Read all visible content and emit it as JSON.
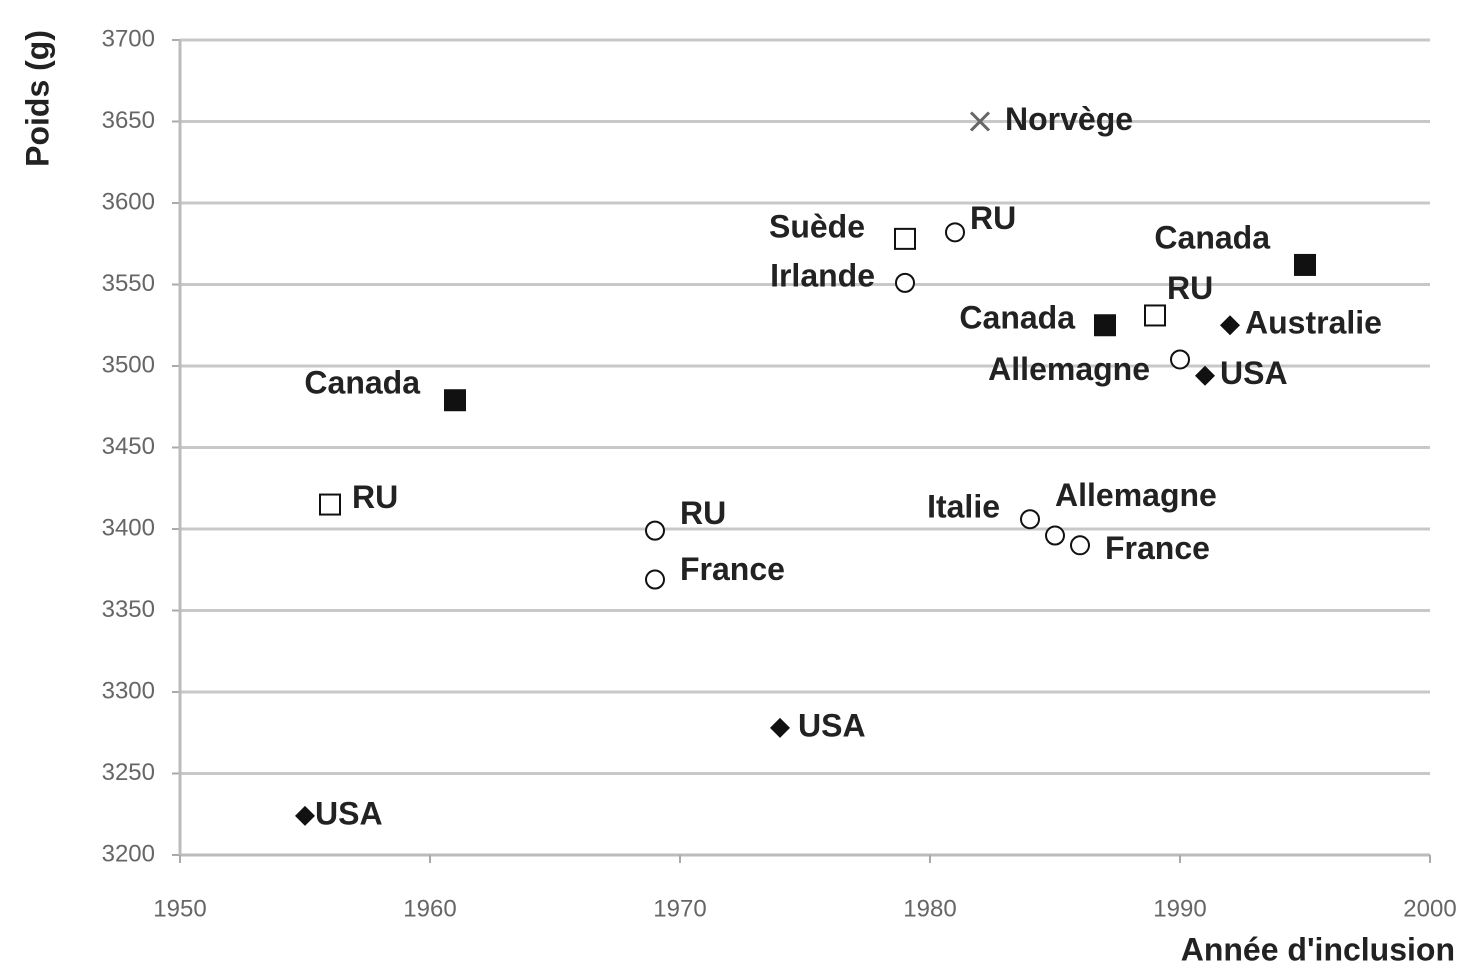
{
  "chart_data": {
    "type": "scatter",
    "x_label": "Année d'inclusion",
    "y_label": "Poids (g)",
    "xlim": [
      1950,
      2000
    ],
    "xticks": [
      1950,
      1960,
      1970,
      1980,
      1990,
      2000
    ],
    "ylim": [
      3200,
      3700
    ],
    "yticks": [
      3200,
      3250,
      3300,
      3350,
      3400,
      3450,
      3500,
      3550,
      3600,
      3650,
      3700
    ],
    "grid": true,
    "color": "#111111",
    "points": [
      {
        "label": "Norvège",
        "x": 1982,
        "y": 3650,
        "marker": "x"
      },
      {
        "label": "Suède",
        "x": 1979,
        "y": 3578,
        "marker": "square"
      },
      {
        "label": "RU",
        "x": 1981,
        "y": 3582,
        "marker": "circle"
      },
      {
        "label": "Irlande",
        "x": 1979,
        "y": 3551,
        "marker": "circle"
      },
      {
        "label": "Canada",
        "x": 1995,
        "y": 3562,
        "marker": "filled-square"
      },
      {
        "label": "RU",
        "x": 1989,
        "y": 3531,
        "marker": "square"
      },
      {
        "label": "Canada",
        "x": 1987,
        "y": 3525,
        "marker": "filled-square"
      },
      {
        "label": "Australie",
        "x": 1992,
        "y": 3525,
        "marker": "diamond"
      },
      {
        "label": "Allemagne",
        "x": 1990,
        "y": 3504,
        "marker": "circle"
      },
      {
        "label": "USA",
        "x": 1991,
        "y": 3494,
        "marker": "diamond"
      },
      {
        "label": "Canada",
        "x": 1961,
        "y": 3479,
        "marker": "filled-square"
      },
      {
        "label": "RU",
        "x": 1956,
        "y": 3415,
        "marker": "square"
      },
      {
        "label": "RU",
        "x": 1969,
        "y": 3399,
        "marker": "circle"
      },
      {
        "label": "France",
        "x": 1969,
        "y": 3369,
        "marker": "circle"
      },
      {
        "label": "Italie",
        "x": 1984,
        "y": 3406,
        "marker": "circle"
      },
      {
        "label": "Allemagne",
        "x": 1985,
        "y": 3396,
        "marker": "circle"
      },
      {
        "label": "France",
        "x": 1986,
        "y": 3390,
        "marker": "circle"
      },
      {
        "label": "USA",
        "x": 1974,
        "y": 3278,
        "marker": "diamond"
      },
      {
        "label": "USA",
        "x": 1955,
        "y": 3224,
        "marker": "diamond"
      }
    ]
  }
}
